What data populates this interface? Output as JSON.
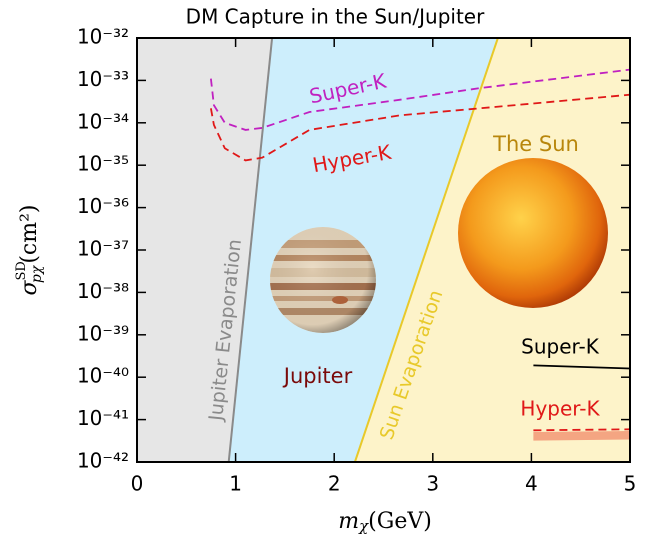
{
  "chart_data": {
    "type": "line",
    "title": "DM Capture in the Sun/Jupiter",
    "x_label": {
      "symbol": "m",
      "sub": "χ",
      "unit": "(GeV)"
    },
    "y_label": {
      "symbol": "σ",
      "sup": "SD",
      "sub": "pχ",
      "unit": "(cm²)"
    },
    "xlim": [
      0,
      5
    ],
    "xticks": [
      0,
      1,
      2,
      3,
      4,
      5
    ],
    "ylim": [
      1e-42,
      1e-32
    ],
    "log_y": true,
    "yticks": [
      {
        "value": 1e-42,
        "label": "10⁻⁴²"
      },
      {
        "value": 1e-41,
        "label": "10⁻⁴¹"
      },
      {
        "value": 1e-40,
        "label": "10⁻⁴⁰"
      },
      {
        "value": 1e-39,
        "label": "10⁻³⁹"
      },
      {
        "value": 1e-38,
        "label": "10⁻³⁸"
      },
      {
        "value": 1e-37,
        "label": "10⁻³⁷"
      },
      {
        "value": 1e-36,
        "label": "10⁻³⁶"
      },
      {
        "value": 1e-35,
        "label": "10⁻³⁵"
      },
      {
        "value": 1e-34,
        "label": "10⁻³⁴"
      },
      {
        "value": 1e-33,
        "label": "10⁻³³"
      },
      {
        "value": 1e-32,
        "label": "10⁻³²"
      }
    ],
    "region_colors": [
      "#e6e6e6",
      "#cdeefc",
      "#fdf3c9"
    ],
    "boundaries": [
      {
        "name": "Jupiter Evaporation",
        "color": "#8a8a8a",
        "x": [
          0.93,
          1.37
        ],
        "y": [
          1e-42,
          1e-32
        ]
      },
      {
        "name": "Sun Evaporation",
        "color": "#e8c92a",
        "x": [
          2.21,
          3.66
        ],
        "y": [
          1e-42,
          1e-32
        ]
      }
    ],
    "annotations": [
      {
        "text": "Jupiter",
        "color": "#7a0a0a"
      },
      {
        "text": "The Sun",
        "color": "#b8860b"
      }
    ],
    "series": [
      {
        "name": "Super-K",
        "color": "#c020c0",
        "dashed": true,
        "x": [
          0.75,
          0.78,
          0.89,
          1.1,
          1.27,
          1.75,
          2.67,
          3.48,
          5.0
        ],
        "values": [
          1.1e-33,
          2.6e-34,
          1e-34,
          6.8e-35,
          7.6e-35,
          1.8e-34,
          3.5e-34,
          6.6e-34,
          1.8e-33
        ]
      },
      {
        "name": "Hyper-K",
        "color": "#e01818",
        "dashed": true,
        "x": [
          0.75,
          0.78,
          0.89,
          1.1,
          1.27,
          1.75,
          2.67,
          3.48,
          5.0
        ],
        "values": [
          2.2e-34,
          8.9e-35,
          2.5e-35,
          1.3e-35,
          1.5e-35,
          6.8e-35,
          1.5e-34,
          2.2e-34,
          4.6e-34
        ]
      },
      {
        "name": "Super-K",
        "color": "#000000",
        "dashed": false,
        "x": [
          4.02,
          5.0
        ],
        "values": [
          1.9e-40,
          1.6e-40
        ]
      },
      {
        "name": "Hyper-K",
        "color": "#e01818",
        "dashed": true,
        "x": [
          4.02,
          5.0
        ],
        "values": [
          5.6e-42,
          5.9e-42
        ],
        "band_color": "#f4a582",
        "band_upper": [
          5.1e-42,
          5.4e-42
        ],
        "band_lower": [
          3.2e-42,
          3.4e-42
        ]
      }
    ]
  }
}
